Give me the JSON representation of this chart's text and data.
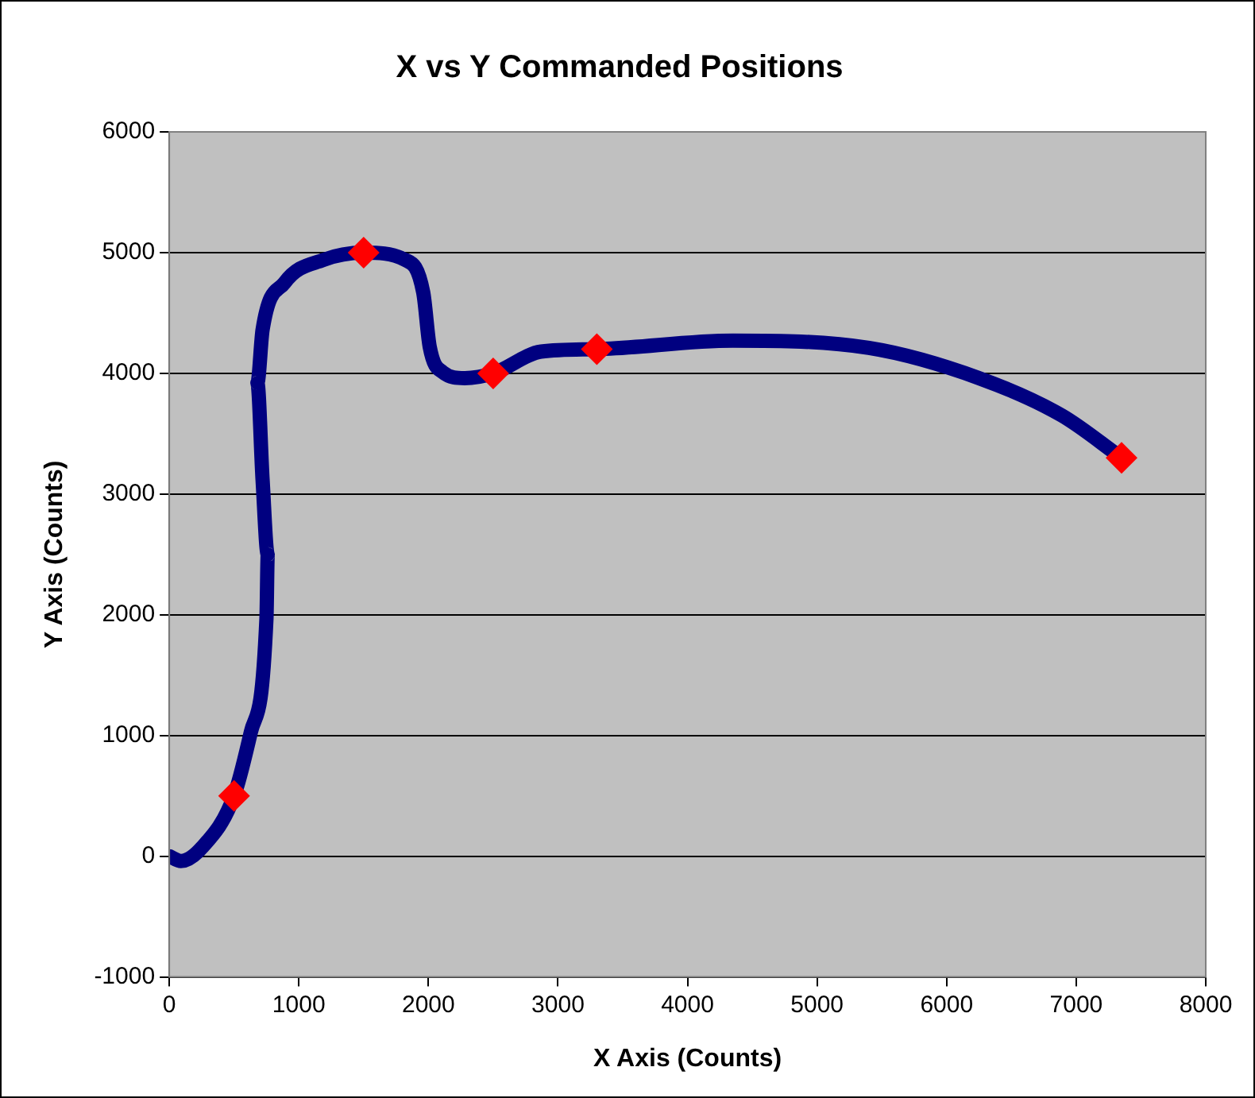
{
  "chart_data": {
    "type": "line",
    "title": "X vs Y Commanded Positions",
    "xlabel": "X Axis (Counts)",
    "ylabel": "Y Axis (Counts)",
    "xlim": [
      0,
      8000
    ],
    "xticks": [
      0,
      1000,
      2000,
      3000,
      4000,
      5000,
      6000,
      7000,
      8000
    ],
    "ylim": [
      -1000,
      6000
    ],
    "yticks": [
      -1000,
      0,
      1000,
      2000,
      3000,
      4000,
      5000,
      6000
    ],
    "grid": "y",
    "legend": false,
    "line_style": "solid",
    "series": [
      {
        "color": "#000080",
        "marker": "none",
        "x": [
          0,
          90,
          250,
          500,
          630,
          750,
          760,
          720,
          680,
          720,
          890,
          1190,
          1500,
          1820,
          1960,
          2010,
          2110,
          2280,
          2500,
          2870,
          3300,
          4350,
          5400,
          6250,
          6890,
          7350
        ],
        "values": [
          0,
          -40,
          70,
          500,
          1030,
          1970,
          2500,
          3120,
          3920,
          4360,
          4750,
          4940,
          5000,
          4940,
          4670,
          4220,
          4010,
          3960,
          4000,
          4180,
          4200,
          4270,
          4210,
          3960,
          3650,
          3300
        ]
      },
      {
        "type": "scatter",
        "color": "#ff0000",
        "marker": "diamond",
        "x": [
          500,
          1500,
          2500,
          3300,
          7350
        ],
        "values": [
          500,
          5000,
          4000,
          4200,
          3300
        ]
      }
    ]
  }
}
